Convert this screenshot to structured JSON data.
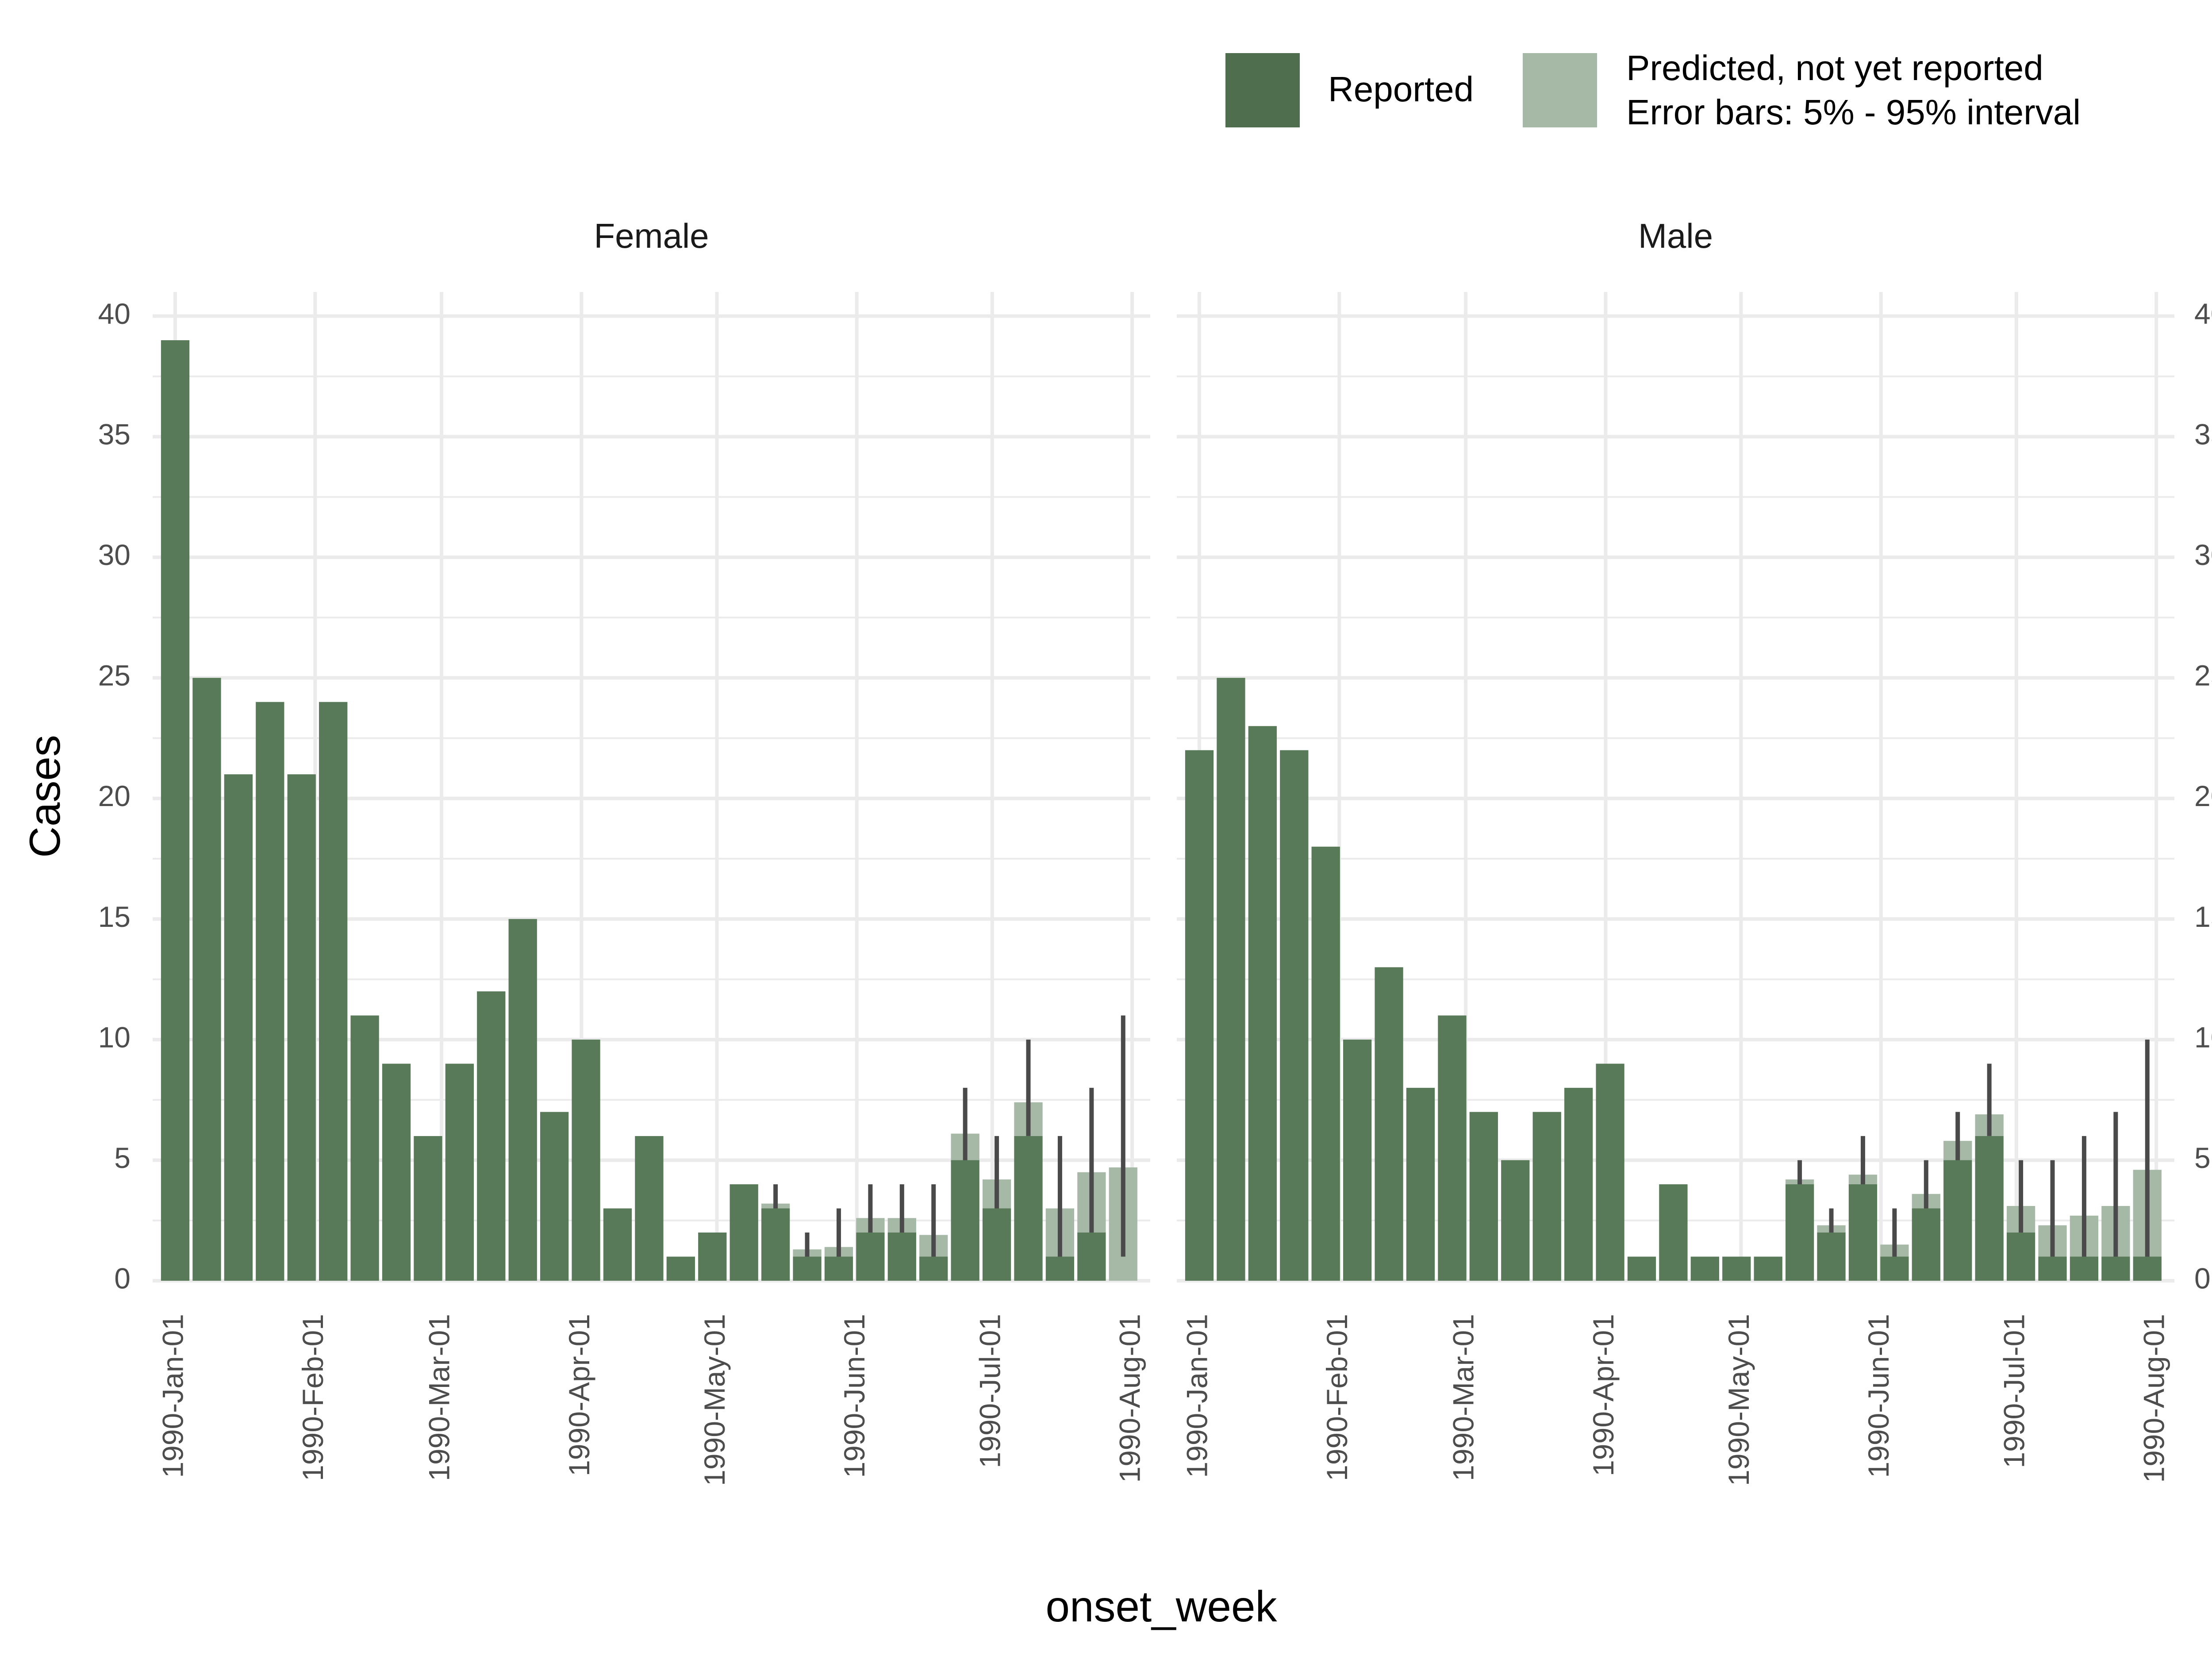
{
  "chart_data": {
    "type": "bar",
    "facet_by": "sex",
    "xlabel": "onset_week",
    "ylabel": "Cases",
    "ylim": [
      0,
      41
    ],
    "yticks": [
      0,
      5,
      10,
      15,
      20,
      25,
      30,
      35,
      40
    ],
    "xlim": [
      "1989-12-27",
      "1990-08-05"
    ],
    "xticks": [
      "1990-Jan-01",
      "1990-Feb-01",
      "1990-Mar-01",
      "1990-Apr-01",
      "1990-May-01",
      "1990-Jun-01",
      "1990-Jul-01",
      "1990-Aug-01"
    ],
    "xtick_dates": [
      "1990-01-01",
      "1990-02-01",
      "1990-03-01",
      "1990-04-01",
      "1990-05-01",
      "1990-06-01",
      "1990-07-01",
      "1990-08-01"
    ],
    "grid": true,
    "legend": {
      "position": "top",
      "entries": [
        {
          "key": "reported",
          "label": "Reported",
          "color": "#4e6e4e"
        },
        {
          "key": "predicted",
          "label_lines": [
            "Predicted, not yet reported",
            "Error bars: 5% - 95% interval"
          ],
          "color": "#a6b8a6"
        }
      ]
    },
    "colors": {
      "reported": "#587a58",
      "predicted": "#a6b8a6",
      "error_bar": "#4a4a4a"
    },
    "weeks": [
      "1990-01-01",
      "1990-01-08",
      "1990-01-15",
      "1990-01-22",
      "1990-01-29",
      "1990-02-05",
      "1990-02-12",
      "1990-02-19",
      "1990-02-26",
      "1990-03-05",
      "1990-03-12",
      "1990-03-19",
      "1990-03-26",
      "1990-04-02",
      "1990-04-09",
      "1990-04-16",
      "1990-04-23",
      "1990-04-30",
      "1990-05-07",
      "1990-05-14",
      "1990-05-21",
      "1990-05-28",
      "1990-06-04",
      "1990-06-11",
      "1990-06-18",
      "1990-06-25",
      "1990-07-02",
      "1990-07-09",
      "1990-07-16",
      "1990-07-23",
      "1990-07-30"
    ],
    "facets": [
      {
        "name": "Female",
        "reported": [
          39,
          25,
          21,
          24,
          21,
          24,
          11,
          9,
          6,
          9,
          12,
          15,
          7,
          10,
          3,
          6,
          1,
          2,
          4,
          3,
          1,
          1,
          2,
          2,
          1,
          5,
          3,
          6,
          1,
          2,
          0
        ],
        "predicted_total": [
          39,
          25,
          21,
          24,
          21,
          24,
          11,
          9,
          6,
          9,
          12,
          15,
          7,
          10,
          3,
          6,
          1,
          2,
          4,
          3.2,
          1.3,
          1.4,
          2.6,
          2.6,
          1.9,
          6.1,
          4.2,
          7.4,
          3.0,
          4.5,
          4.7
        ],
        "error_low": [
          null,
          null,
          null,
          null,
          null,
          null,
          null,
          null,
          null,
          null,
          null,
          null,
          null,
          null,
          null,
          null,
          null,
          null,
          null,
          3,
          1,
          1,
          2,
          2,
          1,
          5,
          3,
          6,
          1,
          2,
          1
        ],
        "error_high": [
          null,
          null,
          null,
          null,
          null,
          null,
          null,
          null,
          null,
          null,
          null,
          null,
          null,
          null,
          null,
          null,
          null,
          null,
          null,
          4,
          2,
          3,
          4,
          4,
          4,
          8,
          6,
          10,
          6,
          8,
          11
        ]
      },
      {
        "name": "Male",
        "reported": [
          22,
          25,
          23,
          22,
          18,
          10,
          13,
          8,
          11,
          7,
          5,
          7,
          8,
          9,
          1,
          4,
          1,
          1,
          1,
          4,
          2,
          4,
          1,
          3,
          5,
          6,
          2,
          1,
          1,
          1,
          1
        ],
        "predicted_total": [
          22,
          25,
          23,
          22,
          18,
          10,
          13,
          8,
          11,
          7,
          5,
          7,
          8,
          9,
          1,
          4,
          1,
          1,
          1,
          4.2,
          2.3,
          4.4,
          1.5,
          3.6,
          5.8,
          6.9,
          3.1,
          2.3,
          2.7,
          3.1,
          4.6
        ],
        "error_low": [
          null,
          null,
          null,
          null,
          null,
          null,
          null,
          null,
          null,
          null,
          null,
          null,
          null,
          null,
          null,
          null,
          null,
          null,
          null,
          4,
          2,
          4,
          1,
          3,
          5,
          6,
          2,
          1,
          1,
          1,
          1
        ],
        "error_high": [
          null,
          null,
          null,
          null,
          null,
          null,
          null,
          null,
          null,
          null,
          null,
          null,
          null,
          null,
          null,
          null,
          null,
          null,
          null,
          5,
          3,
          6,
          3,
          5,
          7,
          9,
          5,
          5,
          6,
          7,
          10
        ]
      }
    ]
  }
}
